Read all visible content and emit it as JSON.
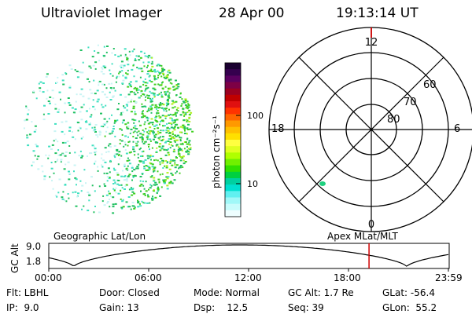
{
  "header": {
    "title": "Ultraviolet Imager",
    "date": "28 Apr 00",
    "time": "19:13:14 UT"
  },
  "colorbar": {
    "unit_label": "photon cm⁻²s⁻¹",
    "tick_labels": [
      "100",
      "10"
    ],
    "colors": [
      "#1a0030",
      "#35004e",
      "#5a0060",
      "#7d0045",
      "#9b0020",
      "#c00000",
      "#e01010",
      "#ff3300",
      "#ff6600",
      "#ff9900",
      "#ffc000",
      "#ffe000",
      "#ffff40",
      "#e0ff20",
      "#b0ff00",
      "#70f000",
      "#30e000",
      "#00d040",
      "#00d0a0",
      "#00e0d0",
      "#60f0f0",
      "#a0f8f8",
      "#c8fcfc",
      "#eefeff"
    ]
  },
  "polar_plot": {
    "labels": {
      "top": "12",
      "bottom": "0",
      "left": "18",
      "right": "6",
      "ring60": "60",
      "ring70": "70",
      "ring80": "80"
    }
  },
  "timeline": {
    "left_label": "Geographic Lat/Lon",
    "right_label": "Apex MLat/MLT",
    "axis_label": "GC Alt",
    "y_ticks": [
      "9.0",
      "1.8"
    ],
    "x_ticks": [
      "00:00",
      "06:00",
      "12:00",
      "18:00",
      "23:59"
    ],
    "current_time_fraction": 0.8014
  },
  "status": {
    "row1": {
      "flt": "Flt: LBHL",
      "door": "Door: Closed",
      "mode": "Mode: Normal",
      "gcalt": "GC Alt: 1.7 Re",
      "glat": "GLat: -56.4"
    },
    "row2": {
      "ip": "IP:  9.0",
      "gain": "Gain: 13",
      "dsp": "Dsp:    12.5",
      "seq": "Seq: 39",
      "glon": "GLon:  55.2"
    }
  }
}
